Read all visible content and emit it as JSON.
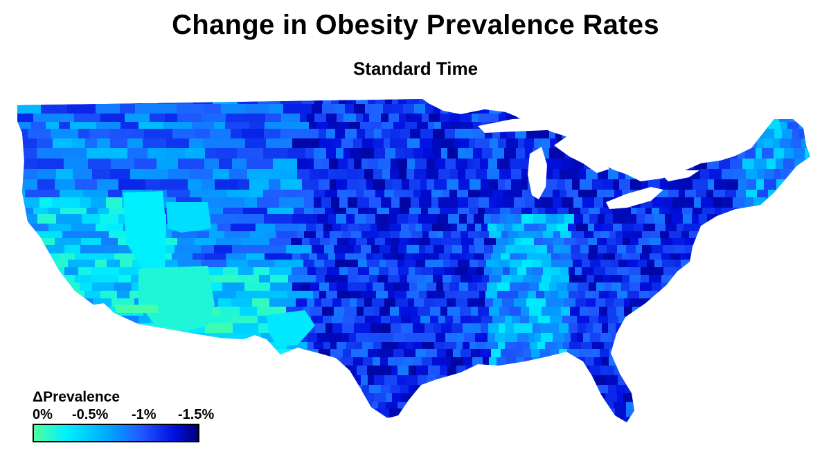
{
  "title": "Change in Obesity Prevalence Rates",
  "subtitle": "Standard Time",
  "legend": {
    "title": "ΔPrevalence",
    "ticks": [
      "0%",
      "-0.5%",
      "-1%",
      "-1.5%"
    ],
    "tick_values": [
      0,
      -0.5,
      -1,
      -1.5
    ],
    "range": [
      0,
      -1.6
    ],
    "colors": [
      "#4dff9e",
      "#00f0ff",
      "#00a8ff",
      "#1f5cff",
      "#0010e0",
      "#00007a"
    ]
  },
  "map": {
    "region": "Contiguous United States",
    "level": "county",
    "background": "#ffffff"
  }
}
